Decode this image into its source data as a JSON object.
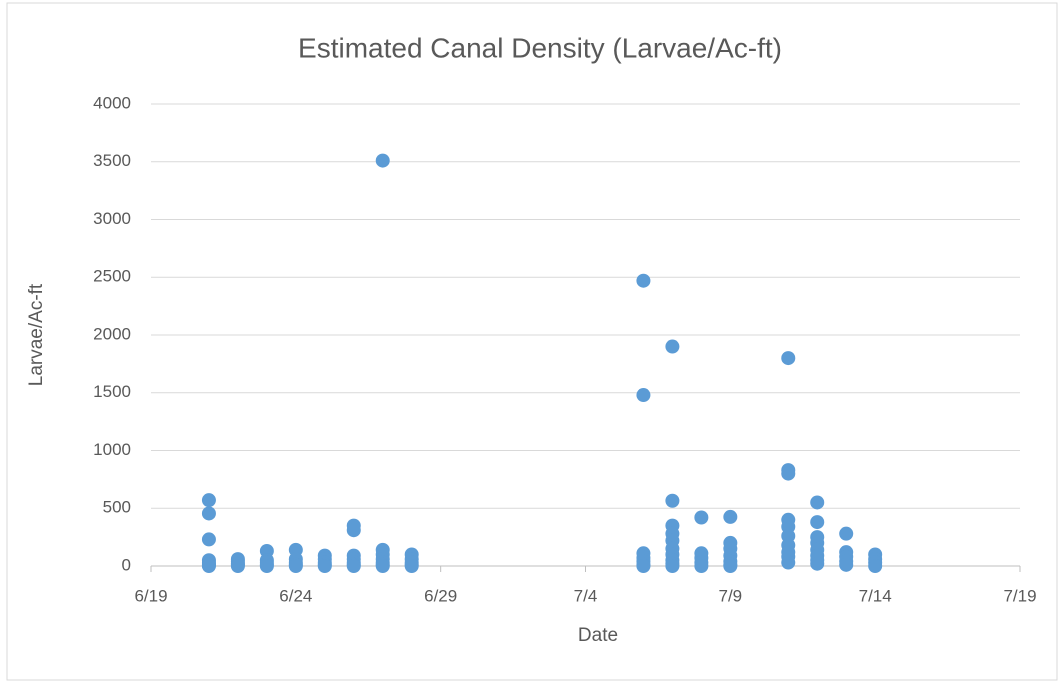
{
  "chart_data": {
    "type": "scatter",
    "title": "Estimated Canal Density (Larvae/Ac-ft)",
    "x_label": "Date",
    "y_label": "Larvae/Ac-ft",
    "xlim": [
      "6/19",
      "7/19"
    ],
    "xticks": [
      "6/19",
      "6/24",
      "6/29",
      "7/4",
      "7/9",
      "7/14",
      "7/19"
    ],
    "ylim": [
      0,
      4000
    ],
    "yticks": [
      0,
      500,
      1000,
      1500,
      2000,
      2500,
      3000,
      3500,
      4000
    ],
    "grid": true,
    "color": "#5b9bd5",
    "x": [
      "6/21",
      "6/21",
      "6/21",
      "6/21",
      "6/21",
      "6/21",
      "6/21",
      "6/21",
      "6/22",
      "6/22",
      "6/22",
      "6/22",
      "6/22",
      "6/23",
      "6/23",
      "6/23",
      "6/23",
      "6/23",
      "6/24",
      "6/24",
      "6/24",
      "6/24",
      "6/24",
      "6/25",
      "6/25",
      "6/25",
      "6/25",
      "6/25",
      "6/26",
      "6/26",
      "6/26",
      "6/26",
      "6/26",
      "6/26",
      "6/26",
      "6/27",
      "6/27",
      "6/27",
      "6/27",
      "6/27",
      "6/27",
      "6/27",
      "6/28",
      "6/28",
      "6/28",
      "6/28",
      "6/28",
      "7/6",
      "7/6",
      "7/6",
      "7/6",
      "7/6",
      "7/6",
      "7/6",
      "7/7",
      "7/7",
      "7/7",
      "7/7",
      "7/7",
      "7/7",
      "7/7",
      "7/7",
      "7/7",
      "7/7",
      "7/8",
      "7/8",
      "7/8",
      "7/8",
      "7/8",
      "7/9",
      "7/9",
      "7/9",
      "7/9",
      "7/9",
      "7/9",
      "7/9",
      "7/11",
      "7/11",
      "7/11",
      "7/11",
      "7/11",
      "7/11",
      "7/11",
      "7/11",
      "7/11",
      "7/11",
      "7/12",
      "7/12",
      "7/12",
      "7/12",
      "7/12",
      "7/12",
      "7/12",
      "7/12",
      "7/13",
      "7/13",
      "7/13",
      "7/13",
      "7/13",
      "7/14",
      "7/14",
      "7/14",
      "7/14"
    ],
    "values": [
      570,
      455,
      230,
      50,
      30,
      15,
      5,
      0,
      60,
      40,
      20,
      10,
      0,
      130,
      50,
      30,
      10,
      0,
      140,
      60,
      30,
      10,
      0,
      90,
      60,
      30,
      10,
      0,
      350,
      310,
      90,
      60,
      30,
      10,
      0,
      3510,
      140,
      100,
      60,
      30,
      10,
      0,
      100,
      60,
      30,
      10,
      0,
      2470,
      1480,
      110,
      70,
      40,
      10,
      0,
      1900,
      565,
      350,
      280,
      220,
      150,
      100,
      50,
      20,
      0,
      420,
      110,
      70,
      30,
      0,
      425,
      200,
      150,
      90,
      40,
      10,
      0,
      1800,
      830,
      800,
      400,
      340,
      260,
      180,
      120,
      80,
      30,
      550,
      380,
      250,
      200,
      140,
      90,
      50,
      20,
      280,
      120,
      80,
      40,
      10,
      100,
      60,
      30,
      0
    ]
  }
}
